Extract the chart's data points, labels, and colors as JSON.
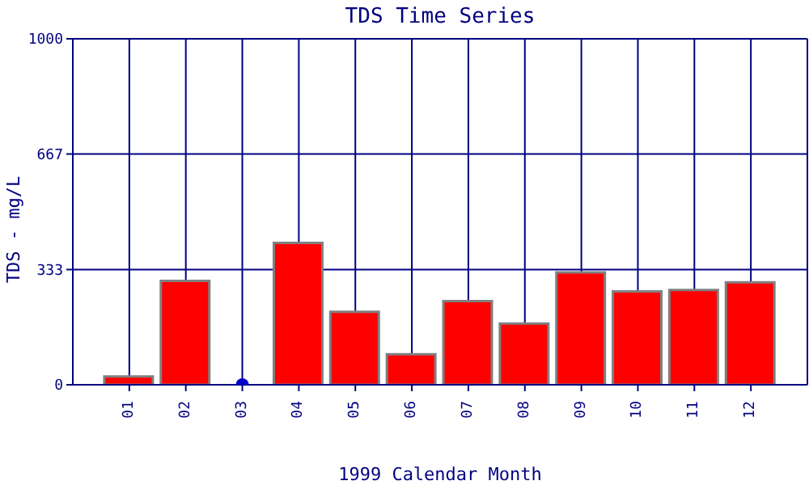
{
  "chart_data": {
    "type": "bar",
    "title": "TDS Time Series",
    "xlabel": "1999 Calendar Month",
    "ylabel": "TDS - mg/L",
    "categories": [
      "01",
      "02",
      "03",
      "04",
      "05",
      "06",
      "07",
      "08",
      "09",
      "10",
      "11",
      "12"
    ],
    "series": [
      {
        "color": "#ff0000",
        "values": [
          24,
          300,
          null,
          410,
          211,
          88,
          242,
          177,
          325,
          270,
          274,
          296
        ]
      },
      {
        "type": "scatter",
        "color": "#0000cc",
        "x": [
          "03"
        ],
        "values": [
          0
        ]
      }
    ],
    "ylim": [
      0,
      1000
    ],
    "yticks": [
      0,
      333,
      667,
      1000
    ],
    "grid": true,
    "marker": "circle"
  }
}
